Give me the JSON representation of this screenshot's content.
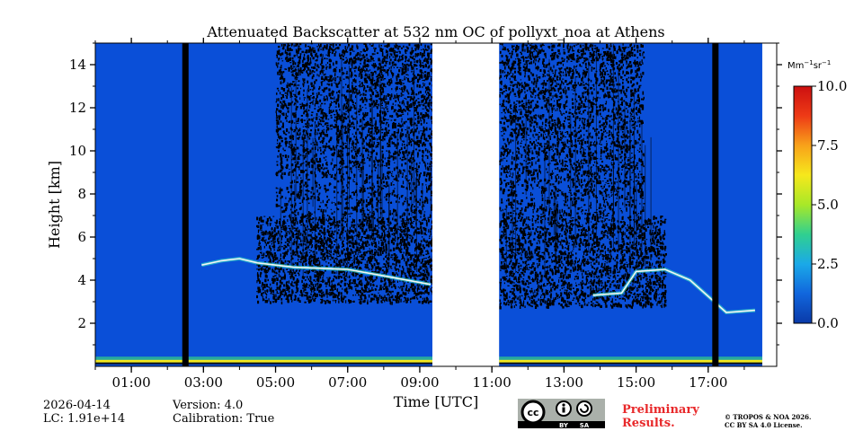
{
  "chart_data": {
    "type": "heatmap",
    "title": "Attenuated Backscatter at 532 nm OC of pollyxt_noa at Athens",
    "xlabel": "Time [UTC]",
    "ylabel": "Height [km]",
    "xlim": [
      0.0,
      18.9
    ],
    "ylim": [
      0.0,
      15.0
    ],
    "x_ticks": [
      {
        "v": 1,
        "label": "01:00"
      },
      {
        "v": 3,
        "label": "03:00"
      },
      {
        "v": 5,
        "label": "05:00"
      },
      {
        "v": 7,
        "label": "07:00"
      },
      {
        "v": 9,
        "label": "09:00"
      },
      {
        "v": 11,
        "label": "11:00"
      },
      {
        "v": 13,
        "label": "13:00"
      },
      {
        "v": 15,
        "label": "15:00"
      },
      {
        "v": 17,
        "label": "17:00"
      }
    ],
    "y_ticks": [
      {
        "v": 2,
        "label": "2"
      },
      {
        "v": 4,
        "label": "4"
      },
      {
        "v": 6,
        "label": "6"
      },
      {
        "v": 8,
        "label": "8"
      },
      {
        "v": 10,
        "label": "10"
      },
      {
        "v": 12,
        "label": "12"
      },
      {
        "v": 14,
        "label": "14"
      }
    ],
    "data_coverage": [
      {
        "start": 0.0,
        "end": 9.35
      },
      {
        "start": 11.2,
        "end": 18.5
      }
    ],
    "no_data_gaps": [
      {
        "start": 9.35,
        "end": 11.2
      }
    ],
    "missing_profiles": [
      2.5,
      17.2
    ],
    "features": [
      {
        "name": "boundary layer",
        "height_km": [
          0.0,
          0.4
        ],
        "value": 6.5
      },
      {
        "name": "noisy region day 1",
        "start": 4.4,
        "end": 9.35,
        "height_km": [
          3.0,
          7.0
        ]
      },
      {
        "name": "noisy region day 2",
        "start": 11.2,
        "end": 15.8,
        "height_km": [
          2.8,
          7.0
        ]
      },
      {
        "name": "aerosol layer",
        "points": [
          [
            2.95,
            4.7
          ],
          [
            3.5,
            4.9
          ],
          [
            4.0,
            5.0
          ],
          [
            4.5,
            4.8
          ],
          [
            5.5,
            4.6
          ],
          [
            7.0,
            4.5
          ],
          [
            8.0,
            4.2
          ],
          [
            9.3,
            3.8
          ]
        ]
      },
      {
        "name": "aerosol layer",
        "points": [
          [
            13.8,
            3.3
          ],
          [
            14.6,
            3.4
          ],
          [
            15.0,
            4.4
          ],
          [
            15.8,
            4.5
          ],
          [
            16.5,
            4.0
          ],
          [
            17.5,
            2.5
          ],
          [
            18.3,
            2.6
          ]
        ]
      }
    ],
    "colorbar": {
      "unit_label": "Mm",
      "unit_sup1": "−1",
      "unit_mid": "sr",
      "unit_sup2": "−1",
      "range": [
        0.0,
        10.0
      ],
      "ticks": [
        {
          "v": 0.0,
          "label": "0.0"
        },
        {
          "v": 2.5,
          "label": "2.5"
        },
        {
          "v": 5.0,
          "label": "5.0"
        },
        {
          "v": 7.5,
          "label": "7.5"
        },
        {
          "v": 10.0,
          "label": "10.0"
        }
      ],
      "colormap": [
        "#0a3aa8",
        "#1166dd",
        "#1aa9e8",
        "#30d090",
        "#a8e828",
        "#f6e81c",
        "#f8a21a",
        "#ee3a16",
        "#cc1010"
      ]
    }
  },
  "footer": {
    "date": "2026-04-14",
    "lc": "LC: 1.91e+14",
    "version": "Version: 4.0",
    "calibration": "Calibration: True",
    "license_badge": {
      "cc": "cc",
      "by": "BY",
      "sa": "SA"
    },
    "preliminary_line1": "Preliminary",
    "preliminary_line2": "Results.",
    "copyright_line1": "© TROPOS & NOA 2026.",
    "copyright_line2": "CC BY SA 4.0 License."
  },
  "colors": {
    "background": "#0a4fd8",
    "noise": "#000000",
    "gap": "#ffffff"
  }
}
